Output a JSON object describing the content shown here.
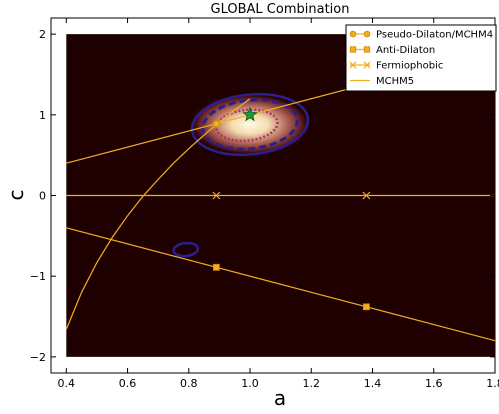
{
  "chart_data": {
    "type": "line",
    "title": "GLOBAL Combination",
    "xlabel": "a",
    "ylabel": "c",
    "xlim": [
      0.35,
      1.8
    ],
    "ylim": [
      -2.2,
      2.2
    ],
    "xticks": [
      0.4,
      0.6,
      0.8,
      1.0,
      1.2,
      1.4,
      1.6,
      1.8
    ],
    "yticks": [
      -2,
      -1,
      0,
      1,
      2
    ],
    "xtick_labels": [
      "0.4",
      "0.6",
      "0.8",
      "1.0",
      "1.2",
      "1.4",
      "1.6",
      "1.8"
    ],
    "ytick_labels": [
      "−2",
      "−1",
      "0",
      "1",
      "2"
    ],
    "plot_region": {
      "x": [
        0.4,
        1.8
      ],
      "y": [
        -2.0,
        2.0
      ],
      "background": "#1f0000"
    },
    "grid": false,
    "legend_position": "top-right",
    "best_fit_marker": {
      "a": 1.0,
      "c": 1.0,
      "symbol": "star",
      "color": "#1e9a3c"
    },
    "contours": [
      {
        "center": [
          1.0,
          0.88
        ],
        "half_width_a": 0.19,
        "half_height_c": 0.37,
        "style": "solid",
        "color": "#2a1f8f"
      },
      {
        "center": [
          1.0,
          0.88
        ],
        "half_width_a": 0.155,
        "half_height_c": 0.3,
        "style": "dashed",
        "color": "#2a1f8f"
      },
      {
        "center": [
          0.99,
          0.87
        ],
        "half_width_a": 0.1,
        "half_height_c": 0.19,
        "style": "dotted",
        "color": "#b03070"
      },
      {
        "center": [
          0.79,
          -0.67
        ],
        "half_width_a": 0.04,
        "half_height_c": 0.08,
        "style": "solid",
        "color": "#2a1f8f"
      }
    ],
    "series": [
      {
        "name": "Pseudo-Dilaton/MCHM4",
        "color": "#f2b01e",
        "marker": "circle",
        "x": [
          0.4,
          0.89,
          1.8
        ],
        "y": [
          0.4,
          0.89,
          1.8
        ],
        "marker_points": [
          [
            0.89,
            0.89
          ]
        ]
      },
      {
        "name": "Anti-Dilaton",
        "color": "#f2b01e",
        "marker": "square",
        "x": [
          0.4,
          0.89,
          1.38,
          1.8
        ],
        "y": [
          -0.4,
          -0.89,
          -1.38,
          -1.8
        ],
        "marker_points": [
          [
            0.89,
            -0.89
          ],
          [
            1.38,
            -1.38
          ]
        ]
      },
      {
        "name": "Fermiophobic",
        "color": "#f2b01e",
        "marker": "x",
        "x": [
          0.4,
          0.89,
          1.38,
          1.8
        ],
        "y": [
          0,
          0,
          0,
          0
        ],
        "marker_points": [
          [
            0.89,
            0
          ],
          [
            1.38,
            0
          ]
        ]
      },
      {
        "name": "MCHM5",
        "color": "#f2b01e",
        "marker": "none",
        "x": [
          0.4,
          0.45,
          0.5,
          0.55,
          0.6,
          0.65,
          0.7,
          0.75,
          0.8,
          0.85,
          0.9,
          0.95,
          1.0
        ],
        "y": [
          -1.66,
          -1.2,
          -0.83,
          -0.52,
          -0.25,
          -0.01,
          0.2,
          0.4,
          0.58,
          0.75,
          0.91,
          1.06,
          1.2
        ]
      }
    ]
  }
}
